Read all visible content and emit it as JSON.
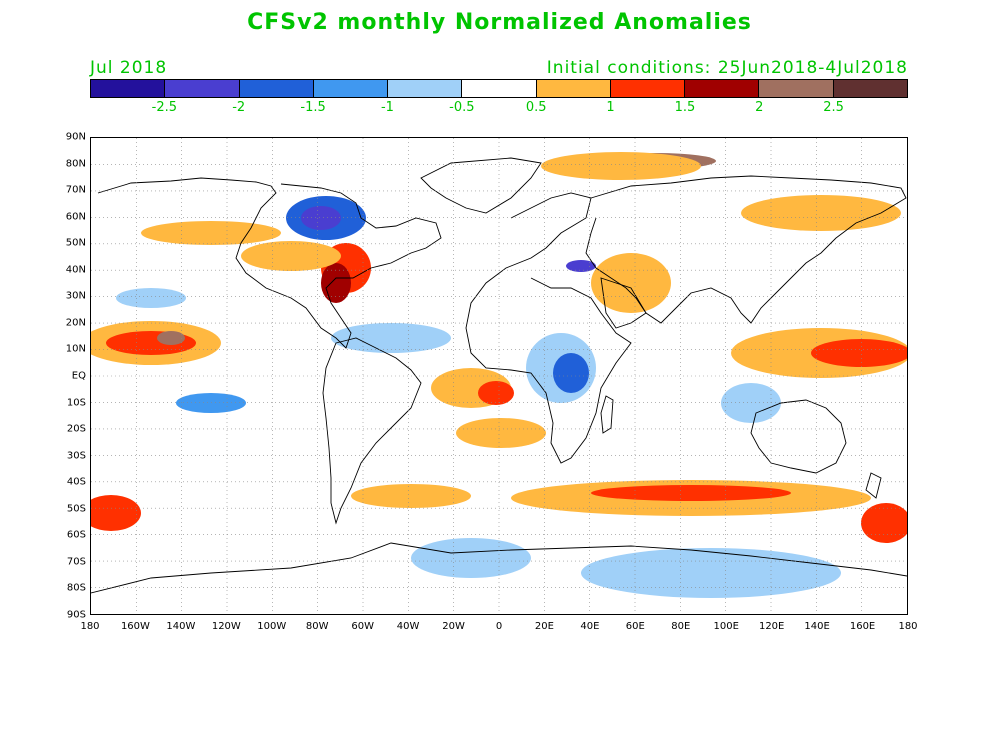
{
  "header": {
    "title": "CFSv2 monthly Normalized Anomalies",
    "valid_month": "Jul 2018",
    "init_conditions": "Initial conditions: 25Jun2018-4Jul2018"
  },
  "colorbar": {
    "colors": [
      "#23119c",
      "#4a3ed0",
      "#2060d8",
      "#4098f0",
      "#a0d0f8",
      "#ffffff",
      "#ffb840",
      "#ff3000",
      "#a00000",
      "#a07060",
      "#603030"
    ],
    "ticks": [
      "-2.5",
      "-2",
      "-1.5",
      "-1",
      "-0.5",
      "0.5",
      "1",
      "1.5",
      "2",
      "2.5"
    ]
  },
  "map": {
    "lat_labels": [
      "90N",
      "80N",
      "70N",
      "60N",
      "50N",
      "40N",
      "30N",
      "20N",
      "10N",
      "EQ",
      "10S",
      "20S",
      "30S",
      "40S",
      "50S",
      "60S",
      "70S",
      "80S",
      "90S"
    ],
    "lon_labels": [
      "180",
      "160W",
      "140W",
      "120W",
      "100W",
      "80W",
      "60W",
      "40W",
      "20W",
      "0",
      "20E",
      "40E",
      "60E",
      "80E",
      "100E",
      "120E",
      "140E",
      "160E",
      "180"
    ]
  }
}
